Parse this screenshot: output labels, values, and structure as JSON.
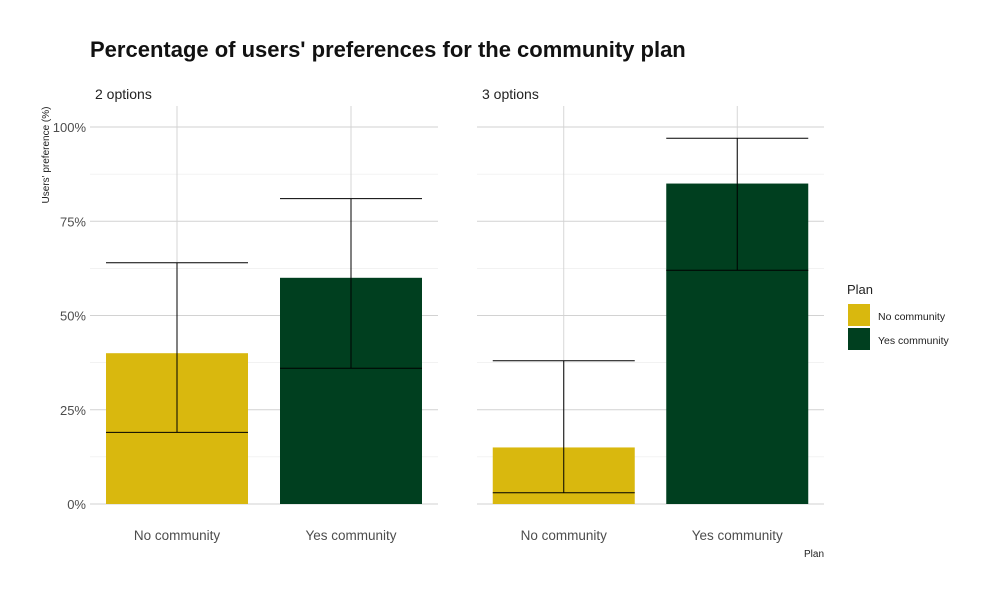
{
  "chart_data": {
    "type": "bar",
    "title": "Percentage of users' preferences for the community plan",
    "ylabel": "Users' preference (%)",
    "xlabel": "Plan",
    "ylim": [
      0,
      100
    ],
    "y_ticks": [
      0,
      25,
      50,
      75,
      100
    ],
    "y_tick_labels": [
      "0%",
      "25%",
      "50%",
      "75%",
      "100%"
    ],
    "categories": [
      "No community",
      "Yes community"
    ],
    "grid": true,
    "legend": {
      "title": "Plan",
      "position": "right",
      "entries": [
        {
          "label": "No community",
          "color": "#d9b80e"
        },
        {
          "label": "Yes community",
          "color": "#003f1f"
        }
      ]
    },
    "panels": [
      {
        "title": "2 options",
        "bars": [
          {
            "category": "No community",
            "value": 40,
            "error_low": 19,
            "error_high": 64,
            "color": "#d9b80e"
          },
          {
            "category": "Yes community",
            "value": 60,
            "error_low": 36,
            "error_high": 81,
            "color": "#003f1f"
          }
        ]
      },
      {
        "title": "3 options",
        "bars": [
          {
            "category": "No community",
            "value": 15,
            "error_low": 3,
            "error_high": 38,
            "color": "#d9b80e"
          },
          {
            "category": "Yes community",
            "value": 85,
            "error_low": 62,
            "error_high": 97,
            "color": "#003f1f"
          }
        ]
      }
    ]
  }
}
